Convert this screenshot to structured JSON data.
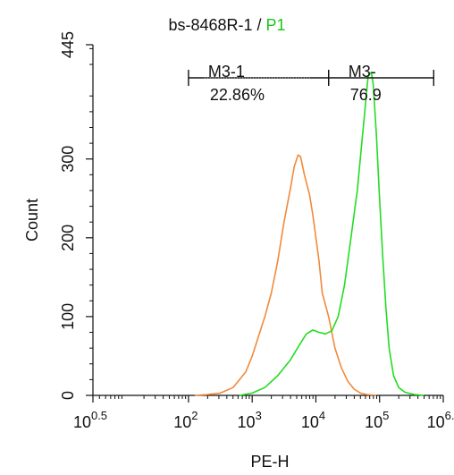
{
  "chart_data": {
    "type": "line",
    "title": {
      "prefix": "bs-8468R-1 / ",
      "highlight": "P1",
      "highlight_color": "#19c719"
    },
    "xlabel": "PE-H",
    "ylabel": "Count",
    "x_scale": "log",
    "xlim_log10": [
      0.5,
      6.0
    ],
    "ylim": [
      0,
      445
    ],
    "x_ticks": [
      {
        "exp": 0.5,
        "base": "10",
        "sup": "0.5"
      },
      {
        "exp": 2,
        "base": "10",
        "sup": "2"
      },
      {
        "exp": 3,
        "base": "10",
        "sup": "3"
      },
      {
        "exp": 4,
        "base": "10",
        "sup": "4"
      },
      {
        "exp": 5,
        "base": "10",
        "sup": "5"
      },
      {
        "exp": 6,
        "base": "10",
        "sup": "6."
      }
    ],
    "y_ticks": [
      0,
      100,
      200,
      300,
      445
    ],
    "series": [
      {
        "color": "#f08a3c",
        "points": [
          [
            2.1,
            0
          ],
          [
            2.3,
            1
          ],
          [
            2.5,
            3
          ],
          [
            2.7,
            10
          ],
          [
            2.9,
            30
          ],
          [
            3.0,
            50
          ],
          [
            3.1,
            75
          ],
          [
            3.2,
            100
          ],
          [
            3.3,
            130
          ],
          [
            3.4,
            170
          ],
          [
            3.5,
            220
          ],
          [
            3.6,
            262
          ],
          [
            3.66,
            290
          ],
          [
            3.72,
            305
          ],
          [
            3.76,
            303
          ],
          [
            3.82,
            280
          ],
          [
            3.9,
            255
          ],
          [
            3.95,
            230
          ],
          [
            4.0,
            200
          ],
          [
            4.05,
            170
          ],
          [
            4.1,
            130
          ],
          [
            4.2,
            100
          ],
          [
            4.3,
            60
          ],
          [
            4.4,
            35
          ],
          [
            4.5,
            18
          ],
          [
            4.6,
            8
          ],
          [
            4.7,
            3
          ],
          [
            4.8,
            1
          ],
          [
            4.95,
            0
          ]
        ]
      },
      {
        "color": "#22dd22",
        "points": [
          [
            2.8,
            0
          ],
          [
            3.0,
            3
          ],
          [
            3.2,
            10
          ],
          [
            3.4,
            25
          ],
          [
            3.6,
            45
          ],
          [
            3.75,
            65
          ],
          [
            3.85,
            78
          ],
          [
            3.95,
            83
          ],
          [
            4.05,
            80
          ],
          [
            4.15,
            78
          ],
          [
            4.25,
            82
          ],
          [
            4.35,
            100
          ],
          [
            4.45,
            140
          ],
          [
            4.55,
            200
          ],
          [
            4.65,
            260
          ],
          [
            4.72,
            320
          ],
          [
            4.78,
            370
          ],
          [
            4.82,
            405
          ],
          [
            4.87,
            410
          ],
          [
            4.9,
            395
          ],
          [
            4.95,
            330
          ],
          [
            5.0,
            250
          ],
          [
            5.05,
            175
          ],
          [
            5.1,
            110
          ],
          [
            5.15,
            60
          ],
          [
            5.22,
            25
          ],
          [
            5.3,
            10
          ],
          [
            5.4,
            4
          ],
          [
            5.55,
            1
          ],
          [
            5.7,
            0
          ]
        ]
      }
    ],
    "gates": [
      {
        "label": "M3-1",
        "percent": "22.86%",
        "x_start_log10": 2.0,
        "x_end_log10": 4.2
      },
      {
        "label": "M3-",
        "percent": "76.9",
        "x_start_log10": 4.2,
        "x_end_log10": 5.85
      }
    ],
    "gate_bar_level": 403,
    "grid": false,
    "legend": "none"
  }
}
